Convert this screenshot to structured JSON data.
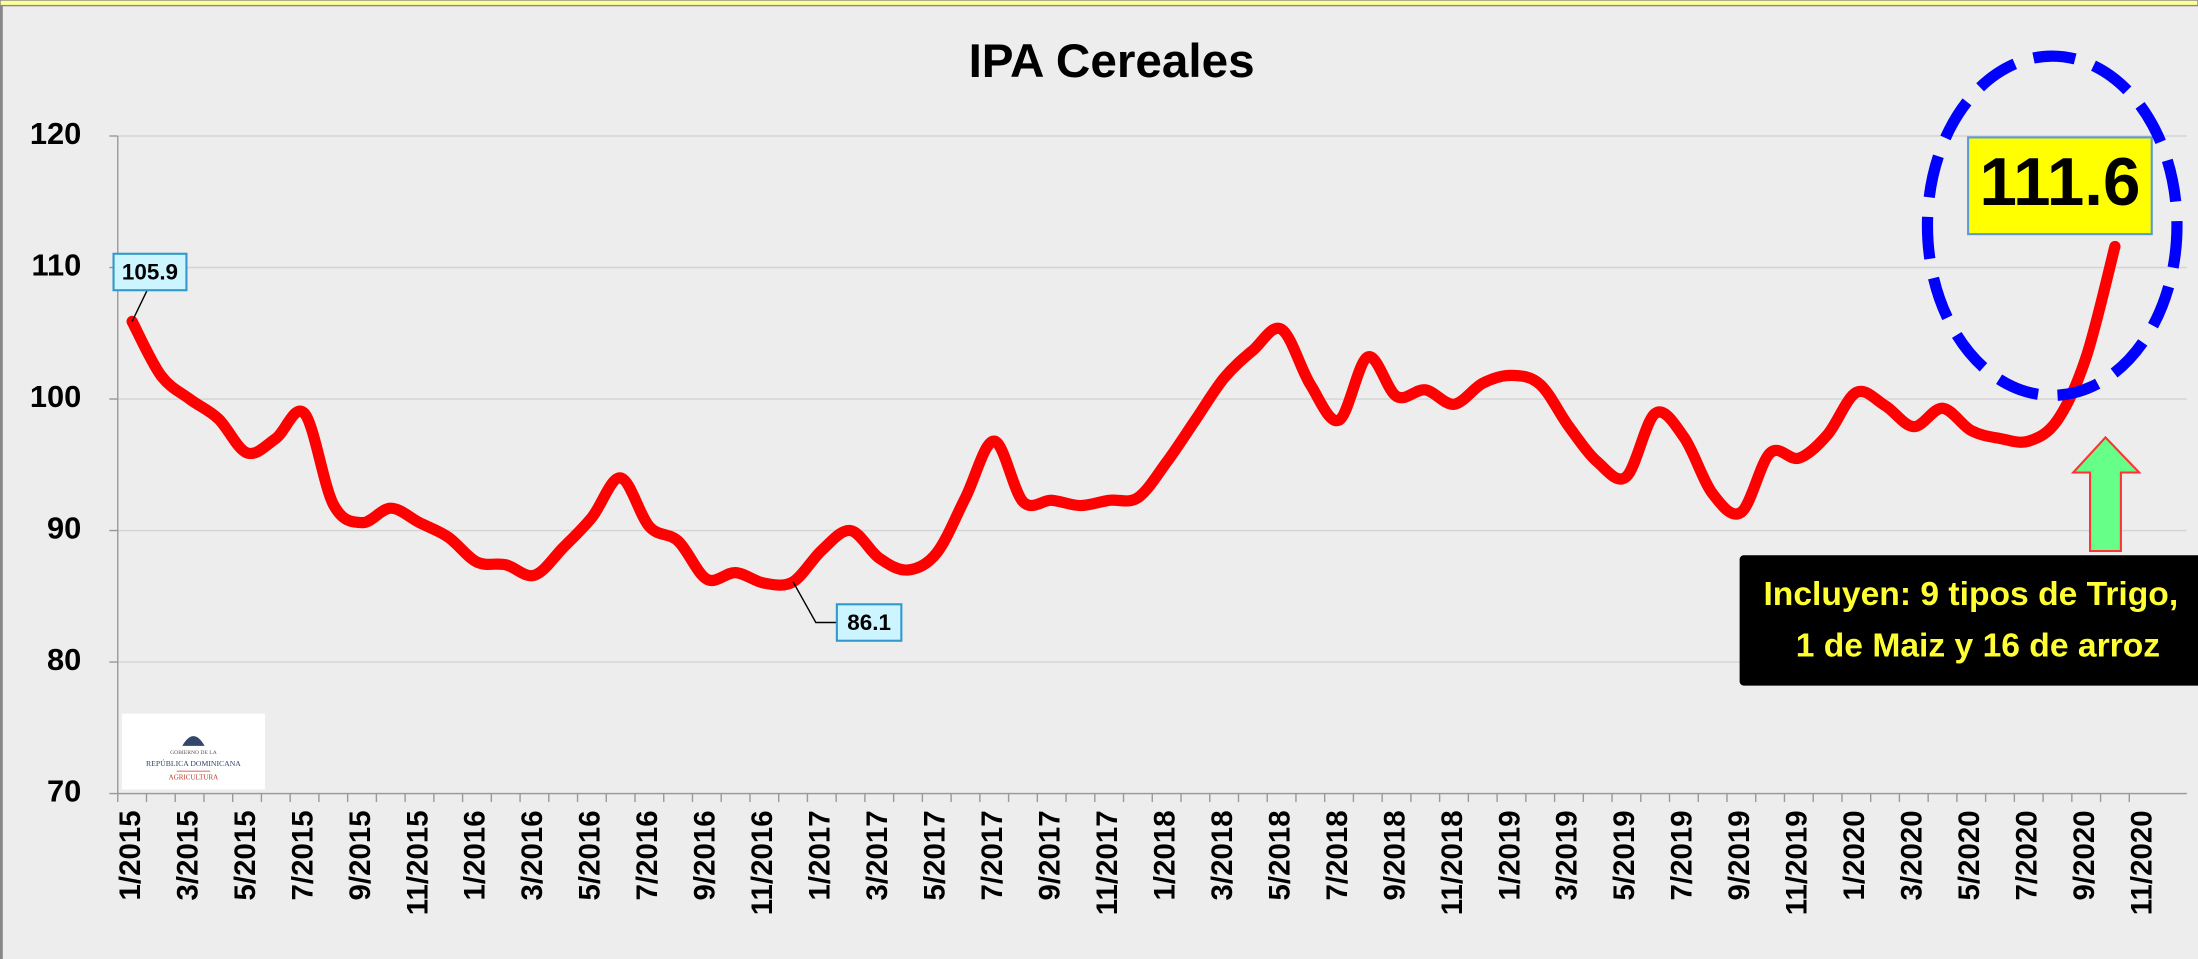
{
  "chart_data": {
    "type": "line",
    "title": "IPA Cereales",
    "categories": [
      "1/2015",
      null,
      "3/2015",
      null,
      "5/2015",
      null,
      "7/2015",
      null,
      "9/2015",
      null,
      "11/2015",
      null,
      "1/2016",
      null,
      "3/2016",
      null,
      "5/2016",
      null,
      "7/2016",
      null,
      "9/2016",
      null,
      "11/2016",
      null,
      "1/2017",
      null,
      "3/2017",
      null,
      "5/2017",
      null,
      "7/2017",
      null,
      "9/2017",
      null,
      "11/2017",
      null,
      "1/2018",
      null,
      "3/2018",
      null,
      "5/2018",
      null,
      "7/2018",
      null,
      "9/2018",
      null,
      "11/2018",
      null,
      "1/2019",
      null,
      "3/2019",
      null,
      "5/2019",
      null,
      "7/2019",
      null,
      "9/2019",
      null,
      "11/2019",
      null,
      "1/2020",
      null,
      "3/2020",
      null,
      "5/2020",
      null,
      "7/2020",
      null,
      "9/2020",
      null,
      "11/2020"
    ],
    "values": [
      105.9,
      101.8,
      100,
      98.5,
      95.9,
      97,
      98.9,
      92,
      90.6,
      91.7,
      90.6,
      89.5,
      87.6,
      87.4,
      86.6,
      88.7,
      91,
      94,
      90.3,
      89.2,
      86.3,
      86.8,
      86,
      86.1,
      88.5,
      90,
      87.9,
      87,
      88.3,
      92.5,
      96.8,
      92.2,
      92.3,
      91.9,
      92.3,
      92.5,
      95.2,
      98.4,
      101.6,
      103.7,
      105.3,
      101.1,
      98.4,
      103.2,
      100.2,
      100.7,
      99.6,
      101.2,
      101.8,
      101.1,
      97.9,
      95.2,
      94.1,
      98.9,
      97.1,
      92.8,
      91.4,
      95.9,
      95.5,
      97.3,
      100.5,
      99.5,
      97.9,
      99.3,
      97.6,
      97,
      96.8,
      98.4,
      103.2,
      111.6,
      null
    ],
    "color": "#ff0000",
    "ylim": [
      70,
      120
    ],
    "yticks": [
      70,
      80,
      90,
      100,
      110,
      120
    ],
    "grid": true,
    "annotation": [
      "Incluyen: 9 tipos de Trigo,",
      "1 de Maiz y 16 de arroz"
    ],
    "logo": [
      "GOBIERNO DE LA",
      "REPÚBLICA DOMINICANA",
      "AGRICULTURA"
    ]
  }
}
